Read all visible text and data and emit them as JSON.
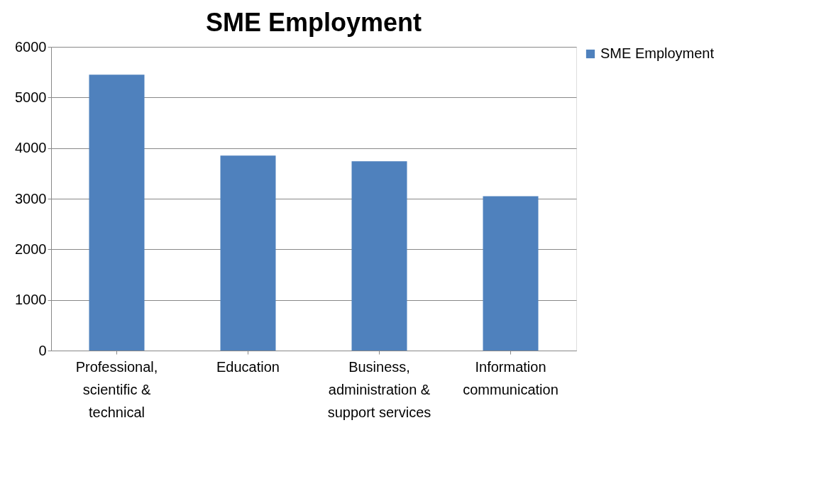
{
  "chart_data": {
    "type": "bar",
    "title": "SME Employment",
    "categories": [
      "Professional, scientific & technical",
      "Education",
      "Business, administration & support services",
      "Information communication"
    ],
    "series": [
      {
        "name": "SME Employment",
        "color": "#4f81bd",
        "values": [
          5450,
          3850,
          3740,
          3050
        ]
      }
    ],
    "ylim": [
      0,
      6000
    ],
    "yticks": [
      0,
      1000,
      2000,
      3000,
      4000,
      5000,
      6000
    ],
    "grid": "y",
    "legend": "right"
  }
}
